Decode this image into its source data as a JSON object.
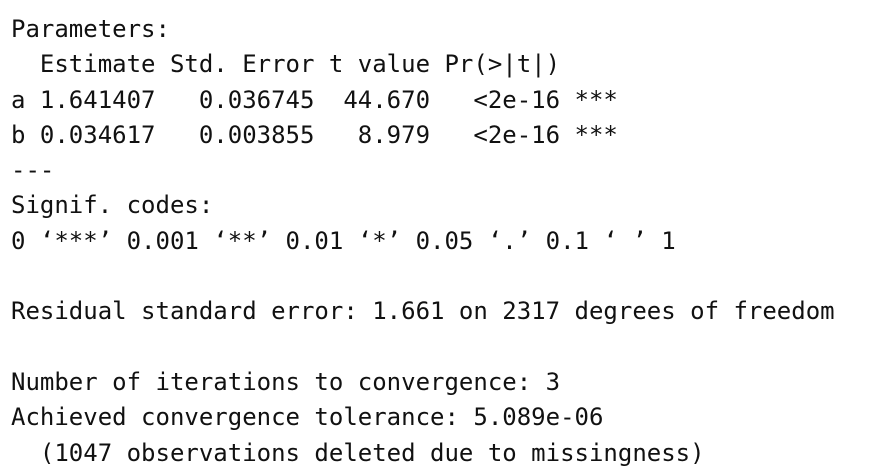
{
  "parameters": {
    "title": "Parameters:",
    "table": {
      "header": "  Estimate Std. Error t value Pr(>|t|)",
      "rows": [
        "a 1.641407   0.036745  44.670   <2e-16 ***",
        "b 0.034617   0.003855   8.979   <2e-16 ***"
      ]
    },
    "separator": "---"
  },
  "signif": {
    "title": "Signif. codes:",
    "codes": "0 ‘***’ 0.001 ‘**’ 0.01 ‘*’ 0.05 ‘.’ 0.1 ‘ ’ 1"
  },
  "residual": "Residual standard error: 1.661 on 2317 degrees of freedom",
  "convergence": {
    "iterations": "Number of iterations to convergence: 3",
    "tolerance": "Achieved convergence tolerance: 5.089e-06",
    "note": "  (1047 observations deleted due to missingness)"
  }
}
